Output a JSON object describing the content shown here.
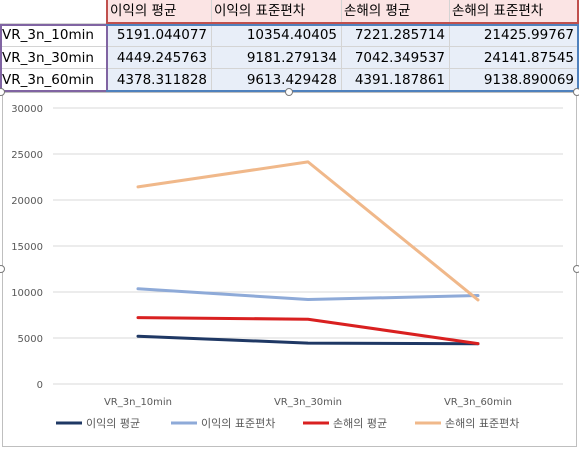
{
  "table": {
    "headers": [
      "이익의 평균",
      "이익의 표준편차",
      "손해의 평균",
      "손해의 표준편차"
    ],
    "rows": [
      {
        "label": "VR_3n_10min",
        "values": [
          "5191.044077",
          "10354.40405",
          "7221.285714",
          "21425.99767"
        ]
      },
      {
        "label": "VR_3n_30min",
        "values": [
          "4449.245763",
          "9181.279134",
          "7042.349537",
          "24141.87545"
        ]
      },
      {
        "label": "VR_3n_60min",
        "values": [
          "4378.311828",
          "9613.429428",
          "4391.187861",
          "9138.890069"
        ]
      }
    ]
  },
  "chart_data": {
    "type": "line",
    "categories": [
      "VR_3n_10min",
      "VR_3n_30min",
      "VR_3n_60min"
    ],
    "series": [
      {
        "name": "이익의 평균",
        "color": "#1f3864",
        "values": [
          5191.044077,
          4449.245763,
          4378.311828
        ]
      },
      {
        "name": "이익의 표준편차",
        "color": "#8eaad8",
        "values": [
          10354.40405,
          9181.279134,
          9613.429428
        ]
      },
      {
        "name": "손해의 평균",
        "color": "#d92020",
        "values": [
          7221.285714,
          7042.349537,
          4391.187861
        ]
      },
      {
        "name": "손해의 표준편차",
        "color": "#f0b88a",
        "values": [
          21425.99767,
          24141.87545,
          9138.890069
        ]
      }
    ],
    "ylim": [
      0,
      30000
    ],
    "yticks": [
      "0",
      "5000",
      "10000",
      "15000",
      "20000",
      "25000",
      "30000"
    ],
    "grid": true,
    "legend": "bottom",
    "title": "",
    "xlabel": "",
    "ylabel": ""
  }
}
